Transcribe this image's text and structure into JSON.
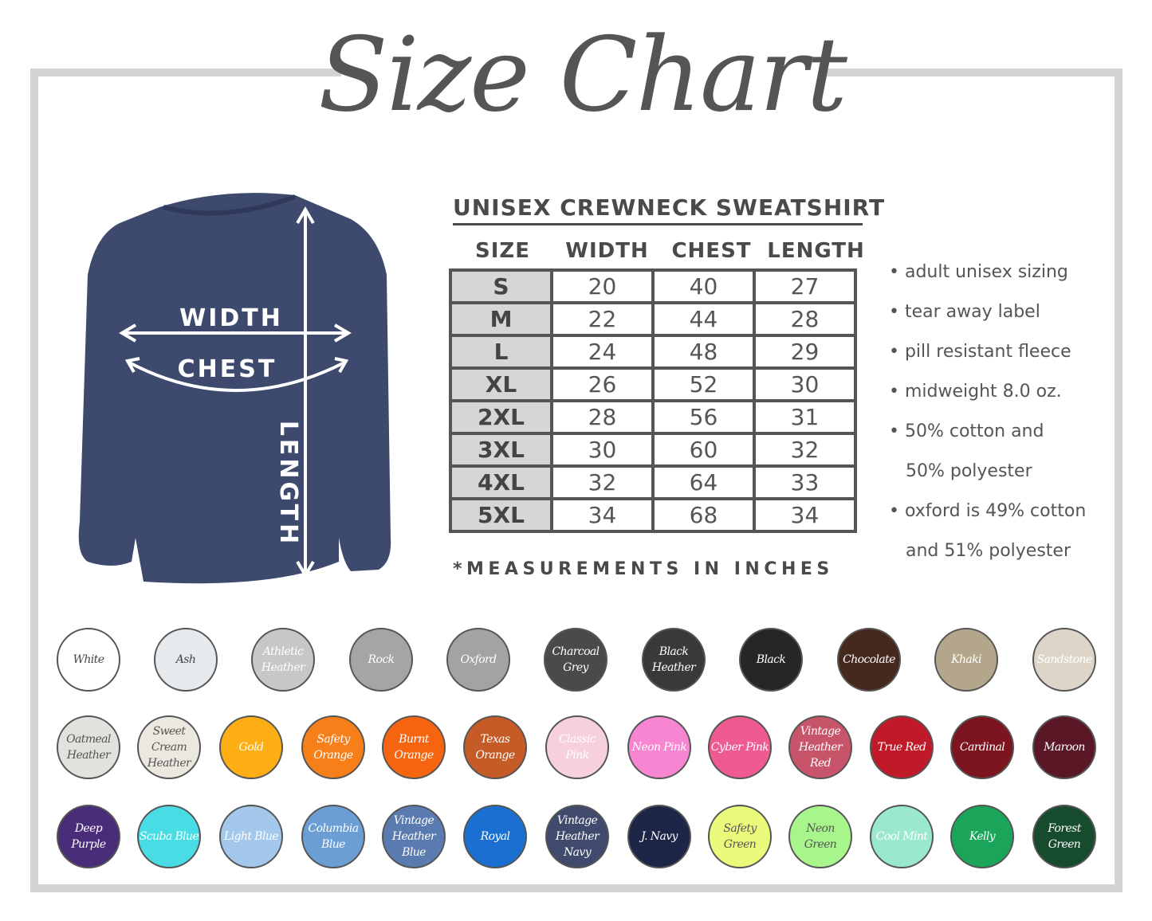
{
  "title": "Size Chart",
  "product": "UNISEX CREWNECK SWEATSHIRT",
  "diagram_labels": {
    "width": "WIDTH",
    "chest": "CHEST",
    "length": "LENGTH"
  },
  "columns": [
    "SIZE",
    "WIDTH",
    "CHEST",
    "LENGTH"
  ],
  "rows": [
    [
      "S",
      "20",
      "40",
      "27"
    ],
    [
      "M",
      "22",
      "44",
      "28"
    ],
    [
      "L",
      "24",
      "48",
      "29"
    ],
    [
      "XL",
      "26",
      "52",
      "30"
    ],
    [
      "2XL",
      "28",
      "56",
      "31"
    ],
    [
      "3XL",
      "30",
      "60",
      "32"
    ],
    [
      "4XL",
      "32",
      "64",
      "33"
    ],
    [
      "5XL",
      "34",
      "68",
      "34"
    ]
  ],
  "note": "*MEASUREMENTS IN INCHES",
  "features": [
    "• adult unisex sizing",
    "• tear away label",
    "• pill resistant fleece",
    "• midweight 8.0 oz.",
    "• 50% cotton and",
    "   50% polyester",
    "• oxford is 49% cotton",
    "   and 51% polyester"
  ],
  "swatches": [
    [
      {
        "name": "White",
        "color": "#ffffff",
        "text": "#444444"
      },
      {
        "name": "Ash",
        "color": "#e6eaec",
        "text": "#444444"
      },
      {
        "name": "Athletic Heather",
        "color": "#c7c7c9",
        "text": "#ffffff"
      },
      {
        "name": "Rock",
        "color": "#a6a4a5",
        "text": "#ffffff"
      },
      {
        "name": "Oxford",
        "color": "#a3a3a3",
        "text": "#ffffff"
      },
      {
        "name": "Charcoal Grey",
        "color": "#4a4a4c",
        "text": "#ffffff"
      },
      {
        "name": "Black Heather",
        "color": "#39393b",
        "text": "#ffffff"
      },
      {
        "name": "Black",
        "color": "#262626",
        "text": "#ffffff"
      },
      {
        "name": "Chocolate",
        "color": "#45291f",
        "text": "#ffffff"
      },
      {
        "name": "Khaki",
        "color": "#b4a68a",
        "text": "#ffffff"
      },
      {
        "name": "Sandstone",
        "color": "#ddd6c8",
        "text": "#ffffff"
      }
    ],
    [
      {
        "name": "Oatmeal Heather",
        "color": "#e3e1dc",
        "text": "#555555"
      },
      {
        "name": "Sweet Cream Heather",
        "color": "#ebe8df",
        "text": "#555555"
      },
      {
        "name": "Gold",
        "color": "#fcae14",
        "text": "#ffffff"
      },
      {
        "name": "Safety Orange",
        "color": "#f77f19",
        "text": "#ffffff"
      },
      {
        "name": "Burnt Orange",
        "color": "#f5650f",
        "text": "#ffffff"
      },
      {
        "name": "Texas Orange",
        "color": "#c55b27",
        "text": "#ffffff"
      },
      {
        "name": "Classic Pink",
        "color": "#f6d1dc",
        "text": "#ffffff"
      },
      {
        "name": "Neon Pink",
        "color": "#f785d2",
        "text": "#ffffff"
      },
      {
        "name": "Cyber Pink",
        "color": "#f05a92",
        "text": "#ffffff"
      },
      {
        "name": "Vintage Heather Red",
        "color": "#c8546a",
        "text": "#ffffff"
      },
      {
        "name": "True Red",
        "color": "#c0192a",
        "text": "#ffffff"
      },
      {
        "name": "Cardinal",
        "color": "#7d1520",
        "text": "#ffffff"
      },
      {
        "name": "Maroon",
        "color": "#5a1826",
        "text": "#ffffff"
      }
    ],
    [
      {
        "name": "Deep Purple",
        "color": "#4a2d78",
        "text": "#ffffff"
      },
      {
        "name": "Scuba Blue",
        "color": "#48dde4",
        "text": "#ffffff"
      },
      {
        "name": "Light Blue",
        "color": "#a3c8ec",
        "text": "#ffffff"
      },
      {
        "name": "Columbia Blue",
        "color": "#6c9ed6",
        "text": "#ffffff"
      },
      {
        "name": "Vintage Heather Blue",
        "color": "#5a7bb0",
        "text": "#ffffff"
      },
      {
        "name": "Royal",
        "color": "#1a6fd0",
        "text": "#ffffff"
      },
      {
        "name": "Vintage Heather Navy",
        "color": "#3f4a6c",
        "text": "#ffffff"
      },
      {
        "name": "J. Navy",
        "color": "#1e2648",
        "text": "#ffffff"
      },
      {
        "name": "Safety Green",
        "color": "#eafb7c",
        "text": "#555555"
      },
      {
        "name": "Neon Green",
        "color": "#a8f58c",
        "text": "#555555"
      },
      {
        "name": "Cool Mint",
        "color": "#9ae9cf",
        "text": "#ffffff"
      },
      {
        "name": "Kelly",
        "color": "#1aa55a",
        "text": "#ffffff"
      },
      {
        "name": "Forest Green",
        "color": "#174b2e",
        "text": "#ffffff"
      }
    ]
  ],
  "colors": {
    "frame": "#d4d4d4",
    "shirt": "#3d4a6e",
    "size_cell": "#d6d6d6"
  }
}
